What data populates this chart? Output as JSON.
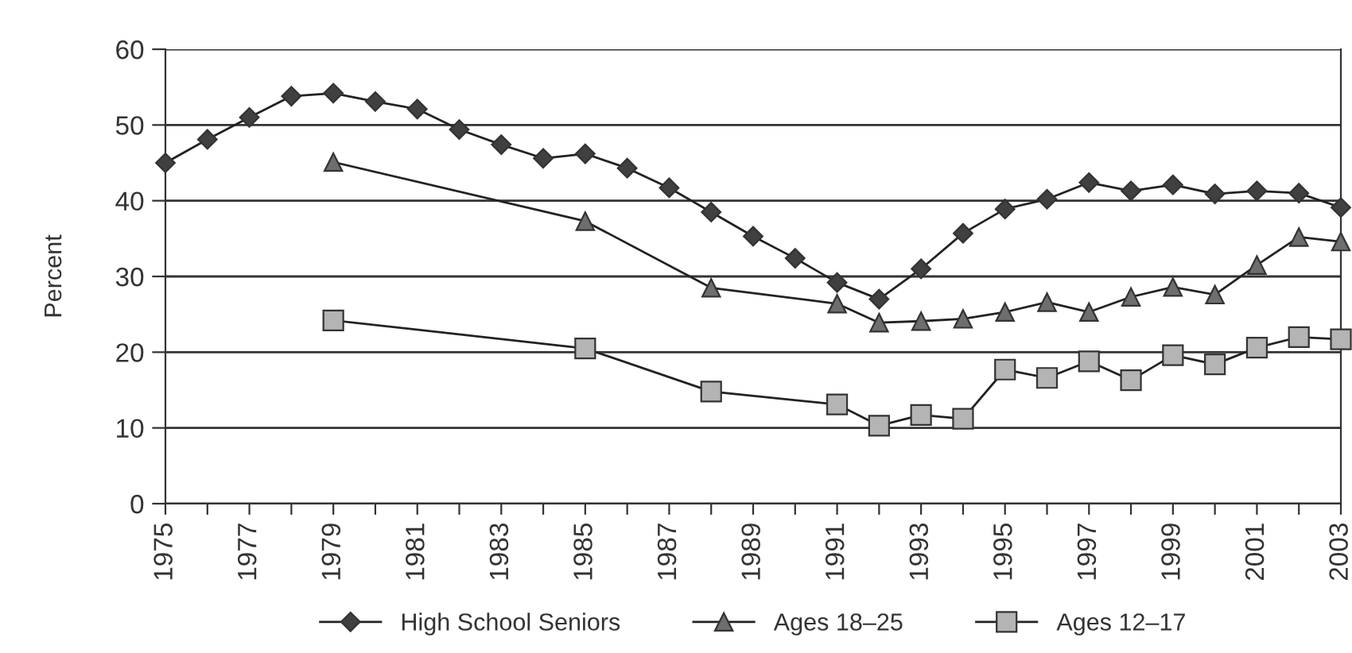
{
  "chart_data": {
    "type": "line",
    "ylabel": "Percent",
    "grid": "y",
    "legend": "bottom",
    "xlim": [
      1975,
      2003
    ],
    "ylim": [
      0,
      60
    ],
    "yticks": [
      0,
      10,
      20,
      30,
      40,
      50,
      60
    ],
    "xticks": [
      1975,
      {
        "value": 1976,
        "label": null
      },
      1977,
      {
        "value": 1978,
        "label": null
      },
      1979,
      {
        "value": 1980,
        "label": null
      },
      1981,
      {
        "value": 1982,
        "label": null
      },
      1983,
      {
        "value": 1984,
        "label": null
      },
      1985,
      {
        "value": 1986,
        "label": null
      },
      1987,
      {
        "value": 1988,
        "label": null
      },
      1989,
      {
        "value": 1990,
        "label": null
      },
      1991,
      {
        "value": 1992,
        "label": null
      },
      1993,
      {
        "value": 1994,
        "label": null
      },
      1995,
      {
        "value": 1996,
        "label": null
      },
      1997,
      {
        "value": 1998,
        "label": null
      },
      1999,
      {
        "value": 2000,
        "label": null
      },
      2001,
      {
        "value": 2002,
        "label": null
      },
      2003
    ],
    "series": [
      {
        "name": "High School Seniors",
        "color": "#404040",
        "marker": "diamond",
        "x": [
          1975,
          1976,
          1977,
          1978,
          1979,
          1980,
          1981,
          1982,
          1983,
          1984,
          1985,
          1986,
          1987,
          1988,
          1989,
          1990,
          1991,
          1992,
          1993,
          1994,
          1995,
          1996,
          1997,
          1998,
          1999,
          2000,
          2001,
          2002,
          2003
        ],
        "values": [
          45,
          48.1,
          51,
          53.8,
          54.2,
          53.1,
          52.1,
          49.4,
          47.4,
          45.6,
          46.2,
          44.3,
          41.7,
          38.5,
          35.3,
          32.4,
          29.2,
          27.0,
          31.0,
          35.7,
          38.9,
          40.2,
          42.4,
          41.3,
          42.1,
          40.9,
          41.3,
          41.0,
          39.1
        ]
      },
      {
        "name": "Ages 18–25",
        "color": "#6e6e6e",
        "marker": "triangle",
        "x": [
          1979,
          1985,
          1988,
          1991,
          1992,
          1993,
          1994,
          1995,
          1996,
          1997,
          1998,
          1999,
          2000,
          2001,
          2002,
          2003
        ],
        "values": [
          45.1,
          37.3,
          28.5,
          26.4,
          23.9,
          24.1,
          24.4,
          25.3,
          26.6,
          25.3,
          27.3,
          28.6,
          27.6,
          31.5,
          35.2,
          34.6
        ]
      },
      {
        "name": "Ages 12–17",
        "color": "#b4b4b4",
        "marker": "square",
        "x": [
          1979,
          1985,
          1988,
          1991,
          1992,
          1993,
          1994,
          1995,
          1996,
          1997,
          1998,
          1999,
          2000,
          2001,
          2002,
          2003
        ],
        "values": [
          24.2,
          20.5,
          14.8,
          13.1,
          10.3,
          11.7,
          11.2,
          17.7,
          16.6,
          18.8,
          16.3,
          19.6,
          18.4,
          20.6,
          22.0,
          21.7
        ]
      }
    ]
  }
}
